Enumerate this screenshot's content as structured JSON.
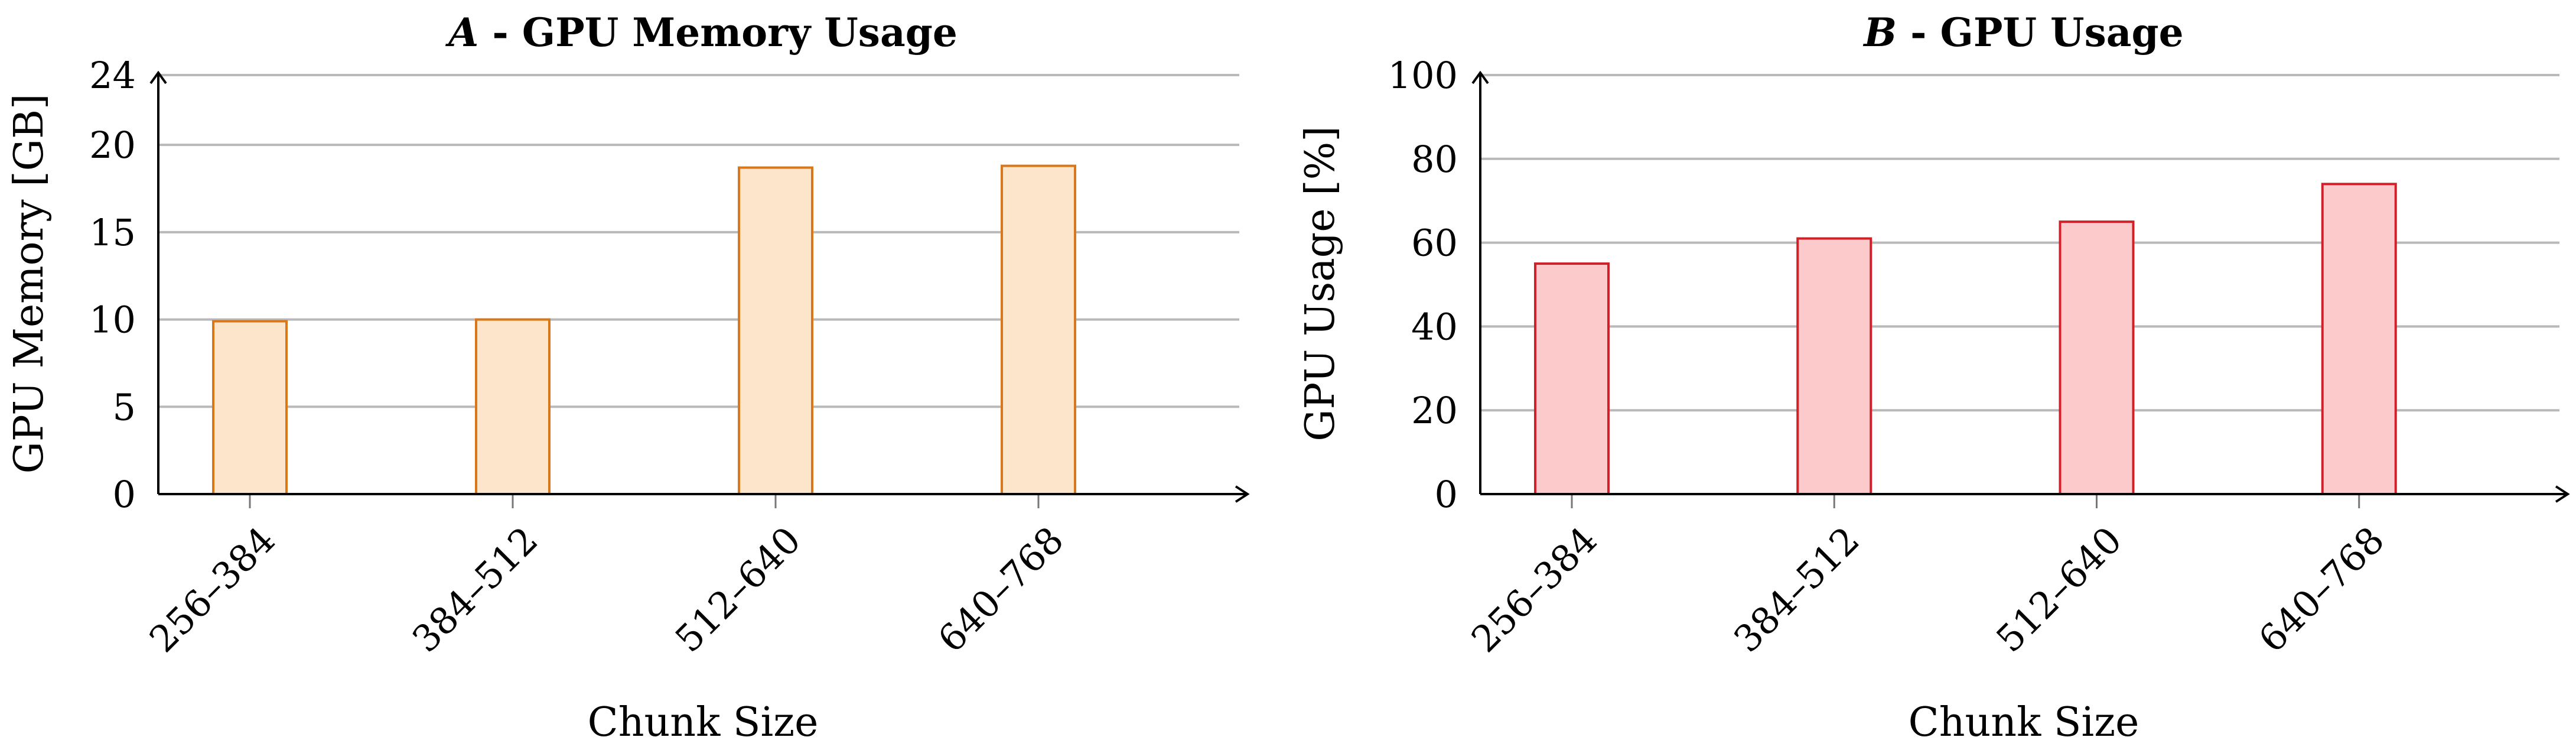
{
  "chart_data": [
    {
      "type": "bar",
      "title_prefix": "A",
      "title": " - GPU Memory Usage",
      "xlabel": "Chunk Size",
      "ylabel": "GPU Memory [GB]",
      "categories": [
        "256–384",
        "384–512",
        "512–640",
        "640–768"
      ],
      "values": [
        9.9,
        10.0,
        18.7,
        18.8
      ],
      "ylim": [
        0,
        24
      ],
      "yticks": [
        "0",
        "5",
        "10",
        "15",
        "20",
        "24"
      ],
      "grid": true,
      "colors": {
        "fill": "#fde5cc",
        "stroke": "#d9781a"
      }
    },
    {
      "type": "bar",
      "title_prefix": "B",
      "title": " - GPU Usage",
      "xlabel": "Chunk Size",
      "ylabel": "GPU Usage [%]",
      "categories": [
        "256–384",
        "384–512",
        "512–640",
        "640–768"
      ],
      "values": [
        55,
        61,
        65,
        74
      ],
      "ylim": [
        0,
        100
      ],
      "yticks": [
        "0",
        "20",
        "40",
        "60",
        "80",
        "100"
      ],
      "grid": true,
      "colors": {
        "fill": "#fccaca",
        "stroke": "#d0202a"
      }
    }
  ]
}
